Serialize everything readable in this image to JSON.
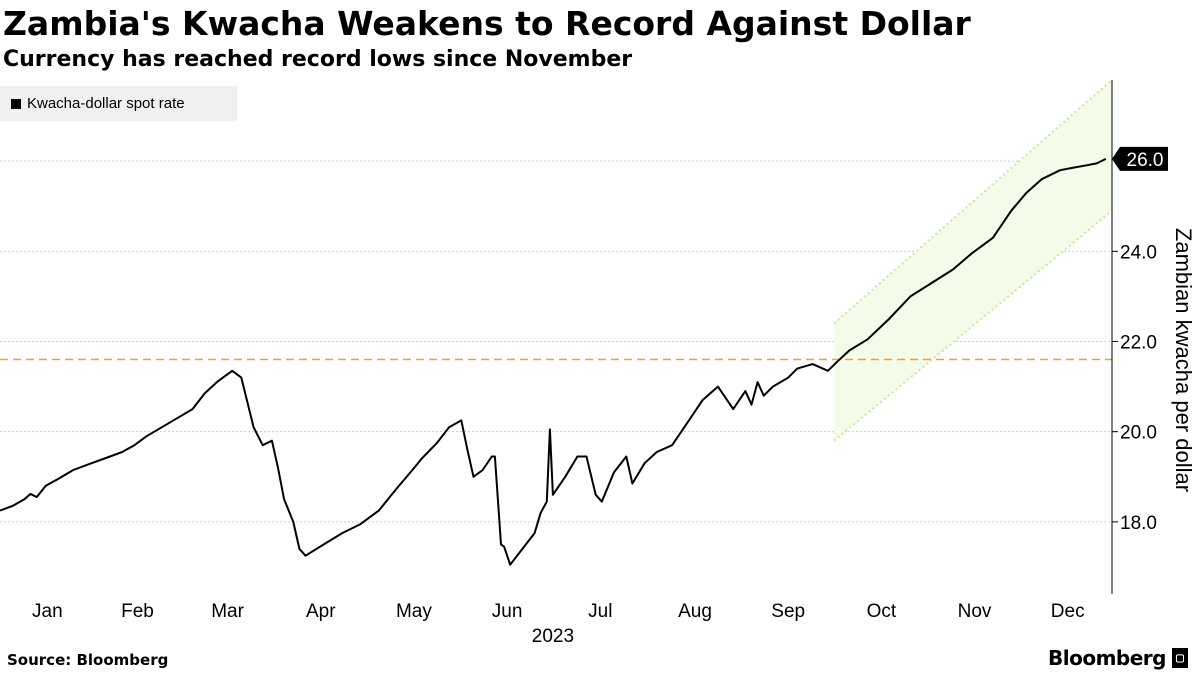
{
  "header": {
    "title": "Zambia's Kwacha Weakens to Record Against Dollar",
    "subtitle": "Currency has reached record lows since November"
  },
  "footer": {
    "source": "Source: Bloomberg",
    "brand": "Bloomberg"
  },
  "colors": {
    "series": "#000000",
    "reference_line": "#f0a030",
    "trend_channel_fill": "#f5fbe9",
    "trend_channel_line": "#c8e6a0",
    "legend_bg": "#f0f0f0",
    "gridline": "#cccccc"
  },
  "chart_data": {
    "type": "line",
    "title": "Zambia's Kwacha Weakens to Record Against Dollar",
    "subtitle": "Currency has reached record lows since November",
    "xlabel": "2023",
    "ylabel": "Zambian kwacha per dollar",
    "x_tick_labels": [
      "Jan",
      "Feb",
      "Mar",
      "Apr",
      "May",
      "Jun",
      "Jul",
      "Aug",
      "Sep",
      "Oct",
      "Nov",
      "Dec"
    ],
    "year_label": "2023",
    "y_ticks": [
      18.0,
      20.0,
      22.0,
      24.0,
      26.0
    ],
    "y_tick_labels": [
      "18.0",
      "20.0",
      "22.0",
      "24.0"
    ],
    "ylim": [
      16.4,
      27.8
    ],
    "xlim": [
      "2023-01-01",
      "2023-12-31"
    ],
    "y_axis_side": "right",
    "grid": true,
    "legend_placement": "top-left",
    "series": [
      {
        "name": "Kwacha-dollar spot rate",
        "x": [
          "2023-01-01",
          "2023-01-05",
          "2023-01-09",
          "2023-01-11",
          "2023-01-13",
          "2023-01-16",
          "2023-01-20",
          "2023-01-25",
          "2023-01-31",
          "2023-02-06",
          "2023-02-10",
          "2023-02-14",
          "2023-02-18",
          "2023-02-23",
          "2023-02-28",
          "2023-03-05",
          "2023-03-09",
          "2023-03-13",
          "2023-03-15",
          "2023-03-18",
          "2023-03-21",
          "2023-03-25",
          "2023-03-28",
          "2023-03-31",
          "2023-04-02",
          "2023-04-04",
          "2023-04-07",
          "2023-04-09",
          "2023-04-11",
          "2023-04-17",
          "2023-04-23",
          "2023-04-29",
          "2023-05-05",
          "2023-05-11",
          "2023-05-16",
          "2023-05-19",
          "2023-05-24",
          "2023-05-28",
          "2023-06-01",
          "2023-06-03",
          "2023-06-05",
          "2023-06-08",
          "2023-06-11",
          "2023-06-12",
          "2023-06-14",
          "2023-06-15",
          "2023-06-17",
          "2023-06-21",
          "2023-06-25",
          "2023-06-27",
          "2023-06-29",
          "2023-06-30",
          "2023-07-01",
          "2023-07-05",
          "2023-07-09",
          "2023-07-12",
          "2023-07-15",
          "2023-07-17",
          "2023-07-21",
          "2023-07-25",
          "2023-07-27",
          "2023-07-31",
          "2023-08-04",
          "2023-08-09",
          "2023-08-14",
          "2023-08-19",
          "2023-08-24",
          "2023-08-29",
          "2023-09-02",
          "2023-09-04",
          "2023-09-06",
          "2023-09-08",
          "2023-09-11",
          "2023-09-16",
          "2023-09-19",
          "2023-09-24",
          "2023-09-29",
          "2023-10-02",
          "2023-10-06",
          "2023-10-12",
          "2023-10-19",
          "2023-10-26",
          "2023-11-02",
          "2023-11-09",
          "2023-11-15",
          "2023-11-22",
          "2023-11-28",
          "2023-12-03",
          "2023-12-08",
          "2023-12-14",
          "2023-12-18",
          "2023-12-22",
          "2023-12-26",
          "2023-12-29"
        ],
        "y": [
          18.25,
          18.35,
          18.5,
          18.62,
          18.55,
          18.8,
          18.95,
          19.15,
          19.3,
          19.45,
          19.55,
          19.7,
          19.9,
          20.1,
          20.3,
          20.5,
          20.85,
          21.1,
          21.2,
          21.35,
          21.2,
          20.1,
          19.7,
          19.8,
          19.2,
          18.5,
          18.0,
          17.4,
          17.25,
          17.5,
          17.75,
          17.95,
          18.25,
          18.75,
          19.15,
          19.4,
          19.75,
          20.1,
          20.25,
          19.6,
          19.0,
          19.15,
          19.45,
          19.45,
          17.5,
          17.45,
          17.05,
          17.4,
          17.75,
          18.2,
          18.45,
          20.05,
          18.6,
          19.0,
          19.45,
          19.45,
          18.6,
          18.45,
          19.1,
          19.45,
          18.85,
          19.3,
          19.55,
          19.7,
          20.2,
          20.7,
          21.0,
          20.5,
          20.9,
          20.6,
          21.1,
          20.8,
          21.0,
          21.2,
          21.4,
          21.5,
          21.35,
          21.55,
          21.8,
          22.05,
          22.5,
          23.0,
          23.3,
          23.6,
          23.95,
          24.3,
          24.9,
          25.3,
          25.6,
          25.8,
          25.85,
          25.9,
          25.95,
          26.05
        ]
      }
    ],
    "reference_line": {
      "y": 21.6,
      "style": "dashed"
    },
    "trend_channel": {
      "x_start": "2023-10-01",
      "x_end": "2023-12-31",
      "upper": [
        22.4,
        27.8
      ],
      "lower": [
        19.8,
        24.9
      ]
    },
    "last_value_label": "26.0"
  }
}
